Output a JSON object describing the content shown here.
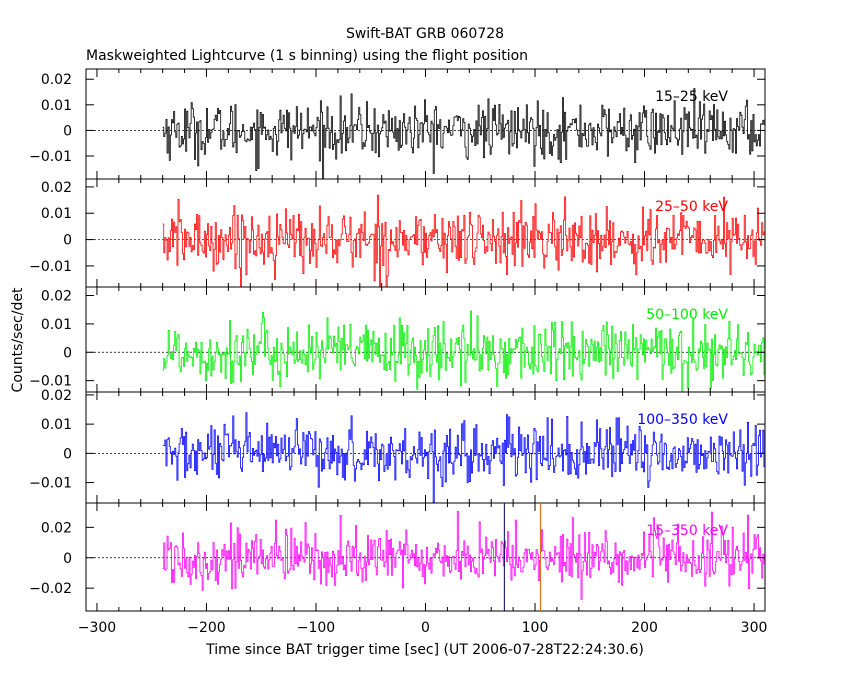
{
  "chart_data": {
    "type": "line",
    "title": "Swift-BAT GRB 060728",
    "subtitle": "Maskweighted Lightcurve (1 s binning) using the flight position",
    "xlabel": "Time since BAT trigger time [sec] (UT 2006-07-28T22:24:30.6)",
    "ylabel": "Counts/sec/det",
    "xlim": [
      -310,
      310
    ],
    "x_ticks": [
      -300,
      -200,
      -100,
      0,
      100,
      200,
      300
    ],
    "x_tick_labels": [
      "−300",
      "−200",
      "−100",
      "0",
      "100",
      "200",
      "300"
    ],
    "data_x_range": [
      -240,
      310
    ],
    "bin_seconds": 1,
    "vertical_marker_x": 105,
    "marker_color": "#e07020",
    "panels": [
      {
        "name": "15–25 keV",
        "color": "#000000",
        "ylim": [
          -0.019,
          0.024
        ],
        "yticks": [
          -0.01,
          0,
          0.01,
          0.02
        ],
        "ytick_labels": [
          "−0.01",
          "0",
          "0.01",
          "0.02"
        ],
        "noise_amplitude": 0.0055
      },
      {
        "name": "25–50 keV",
        "color": "#ff0000",
        "ylim": [
          -0.018,
          0.023
        ],
        "yticks": [
          -0.01,
          0,
          0.01,
          0.02
        ],
        "ytick_labels": [
          "−0.01",
          "0",
          "0.01",
          "0.02"
        ],
        "noise_amplitude": 0.006
      },
      {
        "name": "50–100 keV",
        "color": "#00ee00",
        "ylim": [
          -0.014,
          0.023
        ],
        "yticks": [
          -0.01,
          0,
          0.01,
          0.02
        ],
        "ytick_labels": [
          "−0.01",
          "0",
          "0.01",
          "0.02"
        ],
        "noise_amplitude": 0.0055
      },
      {
        "name": "100–350 keV",
        "color": "#0000ff",
        "ylim": [
          -0.017,
          0.021
        ],
        "yticks": [
          -0.01,
          0,
          0.01,
          0.02
        ],
        "ytick_labels": [
          "−0.01",
          "0",
          "0.01",
          "0.02"
        ],
        "noise_amplitude": 0.005
      },
      {
        "name": "15–350 keV",
        "color": "#ff00ff",
        "ylim": [
          -0.035,
          0.036
        ],
        "yticks": [
          -0.02,
          0,
          0.02
        ],
        "ytick_labels": [
          "−0.02",
          "0",
          "0.02"
        ],
        "noise_amplitude": 0.0095
      }
    ]
  }
}
